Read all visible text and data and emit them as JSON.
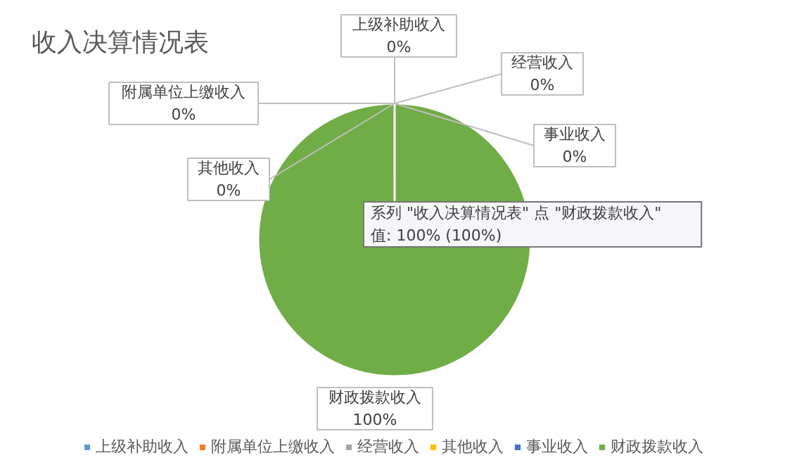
{
  "chart_data": {
    "type": "pie",
    "title": "收入决算情况表",
    "categories": [
      "上级补助收入",
      "附属单位上缴收入",
      "经营收入",
      "其他收入",
      "事业收入",
      "财政拨款收入"
    ],
    "values": [
      0,
      0,
      0,
      0,
      0,
      100
    ],
    "colors": [
      "#5b9bd5",
      "#ed7d31",
      "#a5a5a5",
      "#ffc000",
      "#4472c4",
      "#70ad47"
    ],
    "value_labels": [
      "0%",
      "0%",
      "0%",
      "0%",
      "0%",
      "100%"
    ],
    "legend": "bottom",
    "annotations": [
      "系列 \"收入决算情况表\" 点 \"财政拨款收入\"\n值: 100% (100%)"
    ]
  }
}
